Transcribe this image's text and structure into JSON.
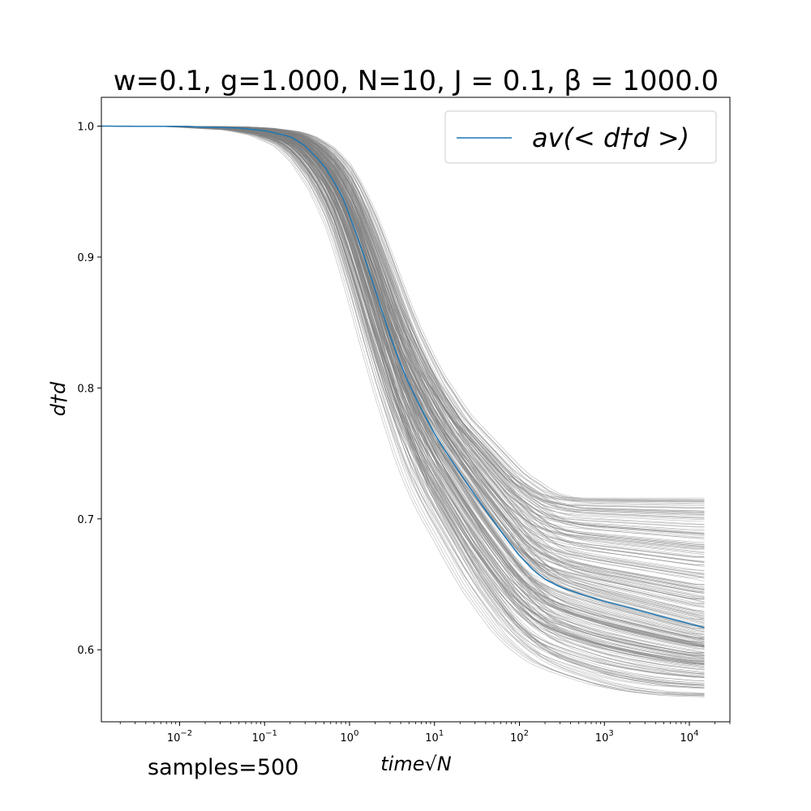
{
  "chart_data": {
    "type": "line",
    "title": "w=0.1, g=1.000, N=10, J = 0.1, β = 1000.0",
    "xlabel": "time√N",
    "ylabel": "d†d",
    "xscale": "log",
    "xlim": [
      0.0012,
      30000
    ],
    "ylim": [
      0.545,
      1.022
    ],
    "grid": false,
    "legend": {
      "placement": "top-right",
      "entries": [
        "av(< d†d >)"
      ]
    },
    "x_ticks": [
      {
        "value": 0.01,
        "base": "10",
        "exp": "−2"
      },
      {
        "value": 0.1,
        "base": "10",
        "exp": "−1"
      },
      {
        "value": 1,
        "base": "10",
        "exp": "0"
      },
      {
        "value": 10,
        "base": "10",
        "exp": "1"
      },
      {
        "value": 100,
        "base": "10",
        "exp": "2"
      },
      {
        "value": 1000,
        "base": "10",
        "exp": "3"
      },
      {
        "value": 10000,
        "base": "10",
        "exp": "4"
      }
    ],
    "y_ticks": [
      {
        "value": 0.6,
        "label": "0.6"
      },
      {
        "value": 0.7,
        "label": "0.7"
      },
      {
        "value": 0.8,
        "label": "0.8"
      },
      {
        "value": 0.9,
        "label": "0.9"
      },
      {
        "value": 1.0,
        "label": "1.0"
      }
    ],
    "series": [
      {
        "name": "av(< d†d >)",
        "color": "#1f77b4",
        "x": [
          0.0012,
          0.01,
          0.05,
          0.1,
          0.2,
          0.3,
          0.5,
          0.8,
          1,
          1.5,
          2,
          3,
          4,
          5,
          7,
          10,
          15,
          20,
          30,
          50,
          70,
          100,
          150,
          200,
          300,
          500,
          1000,
          2000,
          5000,
          15000
        ],
        "y": [
          1.0,
          0.9998,
          0.9985,
          0.9965,
          0.992,
          0.985,
          0.97,
          0.948,
          0.932,
          0.9,
          0.875,
          0.84,
          0.818,
          0.803,
          0.784,
          0.765,
          0.747,
          0.735,
          0.718,
          0.698,
          0.685,
          0.672,
          0.66,
          0.654,
          0.648,
          0.643,
          0.637,
          0.632,
          0.625,
          0.617
        ]
      }
    ],
    "samples_band": {
      "color": "#808080",
      "count": 500,
      "x": [
        0.0012,
        0.01,
        0.05,
        0.1,
        0.2,
        0.3,
        0.5,
        0.8,
        1,
        1.5,
        2,
        3,
        4,
        5,
        7,
        10,
        15,
        20,
        30,
        50,
        70,
        100,
        150,
        200,
        300,
        500,
        1000,
        2000,
        5000,
        15000
      ],
      "lower": [
        1.0,
        0.9996,
        0.997,
        0.993,
        0.984,
        0.972,
        0.95,
        0.92,
        0.9,
        0.86,
        0.83,
        0.79,
        0.765,
        0.745,
        0.72,
        0.7,
        0.68,
        0.665,
        0.645,
        0.625,
        0.612,
        0.602,
        0.593,
        0.588,
        0.583,
        0.578,
        0.572,
        0.568,
        0.565,
        0.564
      ],
      "upper": [
        1.0,
        0.9999,
        0.9995,
        0.9985,
        0.996,
        0.993,
        0.985,
        0.972,
        0.962,
        0.94,
        0.92,
        0.89,
        0.868,
        0.852,
        0.832,
        0.812,
        0.795,
        0.782,
        0.77,
        0.755,
        0.745,
        0.735,
        0.728,
        0.722,
        0.718,
        0.716,
        0.716,
        0.716,
        0.716,
        0.716
      ]
    },
    "annotations": [
      "samples=500"
    ]
  }
}
